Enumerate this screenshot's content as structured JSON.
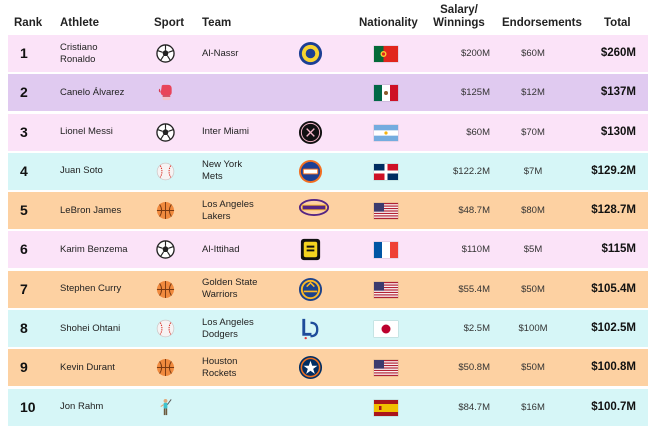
{
  "headers": {
    "rank": "Rank",
    "athlete": "Athlete",
    "sport": "Sport",
    "team": "Team",
    "nationality": "Nationality",
    "salary_line1": "Salary/",
    "salary_line2": "Winnings",
    "endorsements": "Endorsements",
    "total": "Total"
  },
  "colors": {
    "pink": "#fbe3f8",
    "lavender": "#e0caf0",
    "cyan": "#d6f6f7",
    "orange": "#fdd1a2"
  },
  "rows": [
    {
      "rank": "1",
      "athlete_line1": "Cristiano",
      "athlete_line2": "Ronaldo",
      "sport": "soccer-ball-icon",
      "team_line1": "Al-Nassr",
      "team_line2": "",
      "team_logo": "al-nassr-logo",
      "nationality": "portugal-flag",
      "salary": "$200M",
      "endorsements": "$60M",
      "total": "$260M",
      "bg": "#fbe3f8"
    },
    {
      "rank": "2",
      "athlete_line1": "Canelo Álvarez",
      "athlete_line2": "",
      "sport": "boxing-glove-icon",
      "team_line1": "",
      "team_line2": "",
      "team_logo": "",
      "nationality": "mexico-flag",
      "salary": "$125M",
      "endorsements": "$12M",
      "total": "$137M",
      "bg": "#e0caf0"
    },
    {
      "rank": "3",
      "athlete_line1": "Lionel Messi",
      "athlete_line2": "",
      "sport": "soccer-ball-icon",
      "team_line1": "Inter Miami",
      "team_line2": "",
      "team_logo": "inter-miami-logo",
      "nationality": "argentina-flag",
      "salary": "$60M",
      "endorsements": "$70M",
      "total": "$130M",
      "bg": "#fbe3f8"
    },
    {
      "rank": "4",
      "athlete_line1": "Juan Soto",
      "athlete_line2": "",
      "sport": "baseball-icon",
      "team_line1": "New York",
      "team_line2": "Mets",
      "team_logo": "mets-logo",
      "nationality": "dominican-republic-flag",
      "salary": "$122.2M",
      "endorsements": "$7M",
      "total": "$129.2M",
      "bg": "#d6f6f7"
    },
    {
      "rank": "5",
      "athlete_line1": "LeBron James",
      "athlete_line2": "",
      "sport": "basketball-icon",
      "team_line1": "Los Angeles",
      "team_line2": "Lakers",
      "team_logo": "lakers-logo",
      "nationality": "usa-flag",
      "salary": "$48.7M",
      "endorsements": "$80M",
      "total": "$128.7M",
      "bg": "#fdd1a2"
    },
    {
      "rank": "6",
      "athlete_line1": "Karim Benzema",
      "athlete_line2": "",
      "sport": "soccer-ball-icon",
      "team_line1": "Al-Ittihad",
      "team_line2": "",
      "team_logo": "al-ittihad-logo",
      "nationality": "france-flag",
      "salary": "$110M",
      "endorsements": "$5M",
      "total": "$115M",
      "bg": "#fbe3f8"
    },
    {
      "rank": "7",
      "athlete_line1": "Stephen Curry",
      "athlete_line2": "",
      "sport": "basketball-icon",
      "team_line1": "Golden State",
      "team_line2": "Warriors",
      "team_logo": "warriors-logo",
      "nationality": "usa-flag",
      "salary": "$55.4M",
      "endorsements": "$50M",
      "total": "$105.4M",
      "bg": "#fdd1a2"
    },
    {
      "rank": "8",
      "athlete_line1": "Shohei Ohtani",
      "athlete_line2": "",
      "sport": "baseball-icon",
      "team_line1": "Los Angeles",
      "team_line2": "Dodgers",
      "team_logo": "dodgers-logo",
      "nationality": "japan-flag",
      "salary": "$2.5M",
      "endorsements": "$100M",
      "total": "$102.5M",
      "bg": "#d6f6f7"
    },
    {
      "rank": "9",
      "athlete_line1": "Kevin Durant",
      "athlete_line2": "",
      "sport": "basketball-icon",
      "team_line1": "Houston",
      "team_line2": "Rockets",
      "team_logo": "astros-logo",
      "nationality": "usa-flag",
      "salary": "$50.8M",
      "endorsements": "$50M",
      "total": "$100.8M",
      "bg": "#fdd1a2"
    },
    {
      "rank": "10",
      "athlete_line1": "Jon Rahm",
      "athlete_line2": "",
      "sport": "golfer-icon",
      "team_line1": "",
      "team_line2": "",
      "team_logo": "",
      "nationality": "spain-flag",
      "salary": "$84.7M",
      "endorsements": "$16M",
      "total": "$100.7M",
      "bg": "#d6f6f7"
    }
  ]
}
